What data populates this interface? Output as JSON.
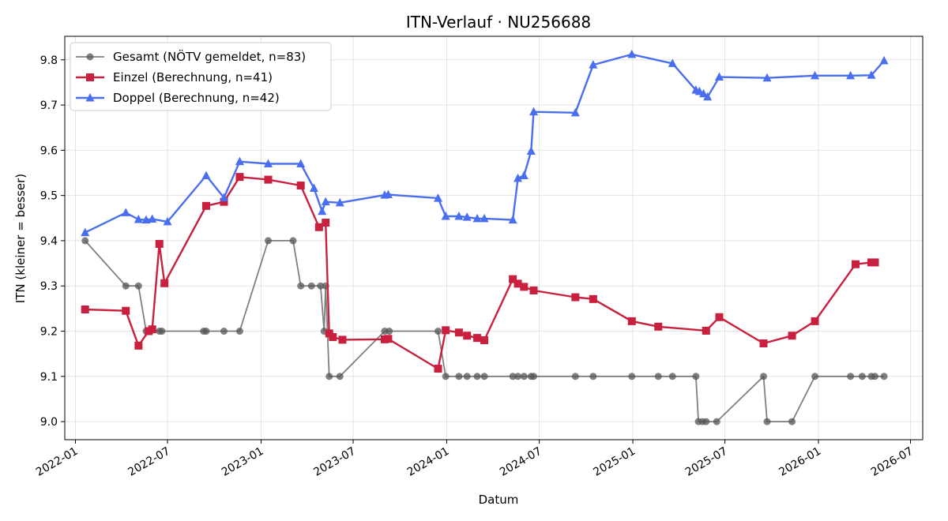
{
  "chart_data": {
    "type": "line",
    "title": "ITN-Verlauf · NU256688",
    "xlabel": "Datum",
    "ylabel": "ITN  (kleiner = besser)",
    "x_ticks": [
      "2022-01",
      "2022-07",
      "2023-01",
      "2023-07",
      "2024-01",
      "2024-07",
      "2025-01",
      "2025-07",
      "2026-01",
      "2026-07"
    ],
    "y_ticks": [
      "9.0",
      "9.1",
      "9.2",
      "9.3",
      "9.4",
      "9.5",
      "9.6",
      "9.7",
      "9.8"
    ],
    "xlim": [
      "2021-12-11",
      "2026-07-25"
    ],
    "ylim": [
      8.96,
      9.852
    ],
    "grid": true,
    "legend_position": "top-left",
    "series": [
      {
        "name": "Gesamt (NÖTV gemeldet, n=83)",
        "color": "#555555",
        "marker": "circle",
        "points": [
          [
            "2022-01-20",
            9.4
          ],
          [
            "2022-04-10",
            9.3
          ],
          [
            "2022-05-05",
            9.3
          ],
          [
            "2022-05-20",
            9.2
          ],
          [
            "2022-05-28",
            9.2
          ],
          [
            "2022-06-15",
            9.2
          ],
          [
            "2022-06-20",
            9.2
          ],
          [
            "2022-09-10",
            9.2
          ],
          [
            "2022-09-15",
            9.2
          ],
          [
            "2022-10-20",
            9.2
          ],
          [
            "2022-11-20",
            9.2
          ],
          [
            "2023-01-15",
            9.4
          ],
          [
            "2023-03-05",
            9.4
          ],
          [
            "2023-03-20",
            9.3
          ],
          [
            "2023-04-10",
            9.3
          ],
          [
            "2023-04-28",
            9.3
          ],
          [
            "2023-05-05",
            9.2
          ],
          [
            "2023-05-08",
            9.3
          ],
          [
            "2023-05-15",
            9.1
          ],
          [
            "2023-06-05",
            9.1
          ],
          [
            "2023-09-01",
            9.2
          ],
          [
            "2023-09-10",
            9.2
          ],
          [
            "2023-12-15",
            9.2
          ],
          [
            "2023-12-30",
            9.1
          ],
          [
            "2024-01-25",
            9.1
          ],
          [
            "2024-02-10",
            9.1
          ],
          [
            "2024-03-01",
            9.1
          ],
          [
            "2024-03-15",
            9.1
          ],
          [
            "2024-05-10",
            9.1
          ],
          [
            "2024-05-20",
            9.1
          ],
          [
            "2024-06-01",
            9.1
          ],
          [
            "2024-06-15",
            9.1
          ],
          [
            "2024-06-20",
            9.1
          ],
          [
            "2024-09-10",
            9.1
          ],
          [
            "2024-10-15",
            9.1
          ],
          [
            "2024-12-30",
            9.1
          ],
          [
            "2025-02-20",
            9.1
          ],
          [
            "2025-03-20",
            9.1
          ],
          [
            "2025-05-05",
            9.1
          ],
          [
            "2025-05-10",
            9.0
          ],
          [
            "2025-05-18",
            9.0
          ],
          [
            "2025-05-25",
            9.0
          ],
          [
            "2025-06-15",
            9.0
          ],
          [
            "2025-09-15",
            9.1
          ],
          [
            "2025-09-22",
            9.0
          ],
          [
            "2025-11-10",
            9.0
          ],
          [
            "2025-12-25",
            9.1
          ],
          [
            "2026-03-05",
            9.1
          ],
          [
            "2026-03-28",
            9.1
          ],
          [
            "2026-04-15",
            9.1
          ],
          [
            "2026-04-22",
            9.1
          ],
          [
            "2026-05-10",
            9.1
          ]
        ]
      },
      {
        "name": "Einzel (Berechnung, n=41)",
        "color": "#c8203e",
        "marker": "square",
        "points": [
          [
            "2022-01-20",
            9.248
          ],
          [
            "2022-04-10",
            9.245
          ],
          [
            "2022-05-05",
            9.168
          ],
          [
            "2022-05-25",
            9.2
          ],
          [
            "2022-06-01",
            9.204
          ],
          [
            "2022-06-15",
            9.393
          ],
          [
            "2022-06-25",
            9.306
          ],
          [
            "2022-09-15",
            9.477
          ],
          [
            "2022-10-20",
            9.486
          ],
          [
            "2022-11-20",
            9.541
          ],
          [
            "2023-01-15",
            9.535
          ],
          [
            "2023-03-20",
            9.522
          ],
          [
            "2023-04-25",
            9.43
          ],
          [
            "2023-05-08",
            9.44
          ],
          [
            "2023-05-15",
            9.195
          ],
          [
            "2023-05-22",
            9.187
          ],
          [
            "2023-06-10",
            9.181
          ],
          [
            "2023-09-01",
            9.182
          ],
          [
            "2023-09-08",
            9.183
          ],
          [
            "2023-12-15",
            9.117
          ],
          [
            "2023-12-30",
            9.202
          ],
          [
            "2024-01-25",
            9.197
          ],
          [
            "2024-02-10",
            9.19
          ],
          [
            "2024-03-01",
            9.185
          ],
          [
            "2024-03-15",
            9.18
          ],
          [
            "2024-05-10",
            9.315
          ],
          [
            "2024-05-20",
            9.305
          ],
          [
            "2024-06-01",
            9.298
          ],
          [
            "2024-06-20",
            9.29
          ],
          [
            "2024-09-10",
            9.275
          ],
          [
            "2024-10-15",
            9.271
          ],
          [
            "2024-12-30",
            9.222
          ],
          [
            "2025-02-20",
            9.21
          ],
          [
            "2025-05-25",
            9.201
          ],
          [
            "2025-06-20",
            9.231
          ],
          [
            "2025-09-15",
            9.173
          ],
          [
            "2025-11-10",
            9.19
          ],
          [
            "2025-12-25",
            9.222
          ],
          [
            "2026-03-15",
            9.348
          ],
          [
            "2026-04-15",
            9.352
          ],
          [
            "2026-04-22",
            9.352
          ]
        ]
      },
      {
        "name": "Doppel (Berechnung, n=42)",
        "color": "#4a6ef0",
        "marker": "triangle",
        "points": [
          [
            "2022-01-20",
            9.418
          ],
          [
            "2022-04-10",
            9.462
          ],
          [
            "2022-05-05",
            9.447
          ],
          [
            "2022-05-20",
            9.446
          ],
          [
            "2022-06-01",
            9.448
          ],
          [
            "2022-07-01",
            9.442
          ],
          [
            "2022-09-15",
            9.544
          ],
          [
            "2022-10-20",
            9.495
          ],
          [
            "2022-11-20",
            9.575
          ],
          [
            "2023-01-15",
            9.57
          ],
          [
            "2023-03-20",
            9.57
          ],
          [
            "2023-04-15",
            9.516
          ],
          [
            "2023-05-01",
            9.465
          ],
          [
            "2023-05-08",
            9.486
          ],
          [
            "2023-06-05",
            9.484
          ],
          [
            "2023-09-01",
            9.501
          ],
          [
            "2023-09-08",
            9.502
          ],
          [
            "2023-12-15",
            9.494
          ],
          [
            "2023-12-30",
            9.454
          ],
          [
            "2024-01-25",
            9.454
          ],
          [
            "2024-02-10",
            9.452
          ],
          [
            "2024-03-01",
            9.449
          ],
          [
            "2024-03-15",
            9.449
          ],
          [
            "2024-05-10",
            9.446
          ],
          [
            "2024-05-20",
            9.538
          ],
          [
            "2024-06-01",
            9.544
          ],
          [
            "2024-06-15",
            9.598
          ],
          [
            "2024-06-20",
            9.685
          ],
          [
            "2024-09-10",
            9.683
          ],
          [
            "2024-10-15",
            9.789
          ],
          [
            "2024-12-30",
            9.812
          ],
          [
            "2025-03-20",
            9.792
          ],
          [
            "2025-05-05",
            9.733
          ],
          [
            "2025-05-12",
            9.73
          ],
          [
            "2025-05-20",
            9.725
          ],
          [
            "2025-05-28",
            9.718
          ],
          [
            "2025-06-20",
            9.762
          ],
          [
            "2025-09-22",
            9.76
          ],
          [
            "2025-12-25",
            9.765
          ],
          [
            "2026-03-05",
            9.765
          ],
          [
            "2026-04-15",
            9.766
          ],
          [
            "2026-05-10",
            9.798
          ]
        ]
      }
    ]
  }
}
